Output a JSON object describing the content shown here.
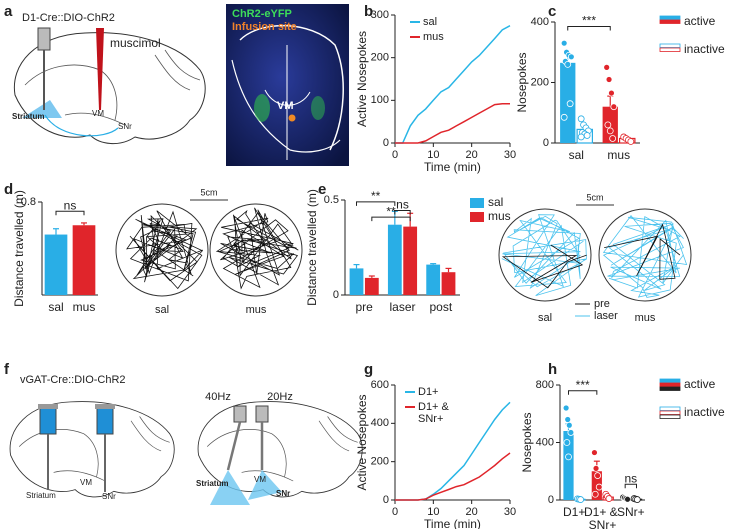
{
  "panel_labels": [
    "a",
    "b",
    "c",
    "d",
    "e",
    "f",
    "g",
    "h"
  ],
  "diagram_a": {
    "title": "D1-Cre::DIO-ChR2",
    "drug": "muscimol",
    "regions": [
      "Striatum",
      "VM",
      "SNr"
    ]
  },
  "image_a": {
    "labels": [
      "ChR2-eYFP",
      "Infusion site",
      "VM"
    ]
  },
  "traj_d": {
    "scale": "5cm",
    "labels": [
      "sal",
      "mus"
    ]
  },
  "traj_e": {
    "scale": "5cm",
    "labels": [
      "sal",
      "mus"
    ],
    "legend": [
      "pre",
      "laser"
    ]
  },
  "diagram_f": {
    "title": "vGAT-Cre::DIO-ChR2",
    "left_regions": [
      "Striatum",
      "VM",
      "SNr"
    ],
    "freqs": [
      "40Hz",
      "20Hz"
    ],
    "right_regions": [
      "Striatum",
      "VM",
      "SNr"
    ]
  },
  "chart_data": [
    {
      "type": "line",
      "xlabel": "Time (min)",
      "ylabel": "Active Nosepokes",
      "x": [
        0,
        2,
        4,
        6,
        8,
        10,
        12,
        14,
        16,
        18,
        20,
        22,
        24,
        26,
        28,
        30
      ],
      "series": [
        {
          "name": "sal",
          "color": "#29b6e6",
          "values": [
            0,
            0,
            40,
            65,
            80,
            100,
            120,
            130,
            150,
            170,
            190,
            205,
            225,
            245,
            265,
            275
          ]
        },
        {
          "name": "mus",
          "color": "#e0252b",
          "values": [
            0,
            0,
            0,
            0,
            5,
            15,
            25,
            30,
            40,
            50,
            60,
            70,
            80,
            90,
            92,
            92
          ]
        }
      ],
      "xlim": [
        0,
        30
      ],
      "xticks": [
        0,
        10,
        20,
        30
      ],
      "ylim": [
        0,
        300
      ],
      "yticks": [
        0,
        100,
        200,
        300
      ]
    },
    {
      "type": "bar",
      "ylabel": "Nosepokes",
      "categories": [
        "sal",
        "mus"
      ],
      "colors": [
        "#29aee6",
        "#e0252b"
      ],
      "series": [
        {
          "name": "active",
          "style": "filled",
          "values": [
            265,
            120
          ],
          "errors": [
            28,
            35
          ],
          "points": [
            [
              330,
              300,
              290,
              285,
              270,
              260,
              130,
              85
            ],
            [
              250,
              210,
              165,
              120,
              60,
              40,
              15
            ]
          ]
        },
        {
          "name": "inactive",
          "style": "outline",
          "values": [
            45,
            15
          ],
          "errors": [
            8,
            3
          ],
          "points": [
            [
              80,
              60,
              50,
              40,
              35,
              30,
              25,
              20
            ],
            [
              20,
              15,
              10,
              5
            ]
          ]
        }
      ],
      "ylim": [
        0,
        400
      ],
      "yticks": [
        0,
        200,
        400
      ],
      "annotations": [
        "***"
      ]
    },
    {
      "type": "bar",
      "ylabel": "Distance travelled (m)",
      "categories": [
        "sal",
        "mus"
      ],
      "colors": [
        "#29aee6",
        "#e0252b"
      ],
      "series": [
        {
          "style": "filled",
          "values": [
            0.52,
            0.6
          ],
          "errors": [
            0.05,
            0.02
          ]
        }
      ],
      "ylim": [
        0,
        0.8
      ],
      "yticks": [
        0.8
      ],
      "annotations": [
        "ns"
      ]
    },
    {
      "type": "bar",
      "ylabel": "Distance travelled (m)",
      "categories": [
        "pre",
        "laser",
        "post"
      ],
      "series": [
        {
          "name": "sal",
          "color": "#29aee6",
          "style": "filled",
          "values": [
            0.14,
            0.37,
            0.16
          ],
          "errors": [
            0.02,
            0.07,
            0.005
          ]
        },
        {
          "name": "mus",
          "color": "#e0252b",
          "style": "filled",
          "values": [
            0.09,
            0.36,
            0.12
          ],
          "errors": [
            0.01,
            0.07,
            0.02
          ]
        }
      ],
      "ylim": [
        0,
        0.5
      ],
      "yticks": [
        0,
        0.5
      ],
      "annotations": [
        "**",
        "ns",
        "**"
      ]
    },
    {
      "type": "line",
      "xlabel": "Time (min)",
      "ylabel": "Active Nosepokes",
      "x": [
        0,
        2,
        4,
        6,
        8,
        10,
        12,
        14,
        16,
        18,
        20,
        22,
        24,
        26,
        28,
        30
      ],
      "series": [
        {
          "name": "D1+",
          "color": "#29b6e6",
          "values": [
            0,
            0,
            0,
            0,
            5,
            30,
            60,
            100,
            140,
            180,
            240,
            300,
            360,
            420,
            470,
            510
          ]
        },
        {
          "name": "D1+ & SNr+",
          "color": "#e0252b",
          "values": [
            0,
            0,
            0,
            0,
            5,
            25,
            40,
            55,
            70,
            80,
            100,
            120,
            150,
            180,
            215,
            245
          ]
        }
      ],
      "xlim": [
        0,
        30
      ],
      "xticks": [
        0,
        10,
        20,
        30
      ],
      "ylim": [
        0,
        600
      ],
      "yticks": [
        0,
        200,
        400,
        600
      ]
    },
    {
      "type": "bar",
      "ylabel": "Nosepokes",
      "categories": [
        "D1+",
        "D1+ & SNr+",
        "SNr+"
      ],
      "colors": [
        "#29aee6",
        "#e0252b",
        "#222222"
      ],
      "series": [
        {
          "name": "active",
          "style": "filled",
          "values": [
            480,
            200,
            15
          ],
          "errors": [
            50,
            70,
            5
          ],
          "points": [
            [
              640,
              560,
              520,
              470,
              400,
              300
            ],
            [
              330,
              220,
              170,
              90,
              40
            ],
            [
              20,
              15,
              10,
              5
            ]
          ]
        },
        {
          "name": "inactive",
          "style": "outline",
          "values": [
            5,
            20,
            5
          ],
          "errors": [
            2,
            8,
            2
          ],
          "points": [
            [
              8,
              5,
              3
            ],
            [
              40,
              25,
              10
            ],
            [
              10,
              6,
              3
            ]
          ]
        }
      ],
      "ylim": [
        0,
        800
      ],
      "yticks": [
        0,
        400,
        800
      ],
      "annotations": [
        "***",
        "ns"
      ]
    }
  ]
}
